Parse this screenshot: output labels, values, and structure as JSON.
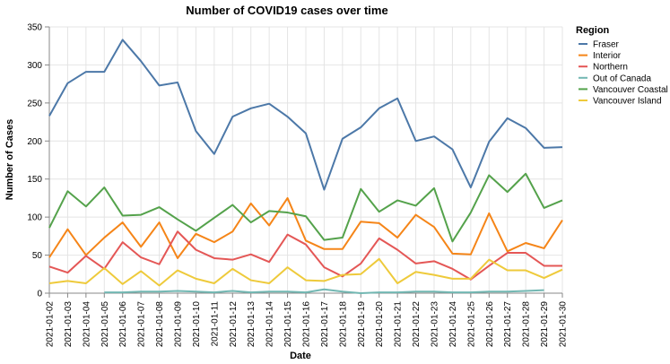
{
  "chart_data": {
    "type": "line",
    "title": "Number of COVID19 cases over time",
    "xlabel": "Date",
    "ylabel": "Number of Cases",
    "ylim": [
      0,
      350
    ],
    "yticks": [
      0,
      50,
      100,
      150,
      200,
      250,
      300,
      350
    ],
    "grid": true,
    "legend_title": "Region",
    "legend_position": "right",
    "x": [
      "2021-01-02",
      "2021-01-03",
      "2021-01-04",
      "2021-01-05",
      "2021-01-06",
      "2021-01-07",
      "2021-01-08",
      "2021-01-09",
      "2021-01-10",
      "2021-01-11",
      "2021-01-12",
      "2021-01-13",
      "2021-01-14",
      "2021-01-15",
      "2021-01-16",
      "2021-01-17",
      "2021-01-18",
      "2021-01-19",
      "2021-01-20",
      "2021-01-21",
      "2021-01-22",
      "2021-01-23",
      "2021-01-24",
      "2021-01-25",
      "2021-01-26",
      "2021-01-27",
      "2021-01-28",
      "2021-01-29",
      "2021-01-30"
    ],
    "series": [
      {
        "name": "Fraser",
        "color": "#4c78a8",
        "values": [
          233,
          276,
          291,
          291,
          333,
          305,
          273,
          277,
          213,
          183,
          232,
          243,
          249,
          232,
          210,
          136,
          203,
          218,
          243,
          256,
          200,
          206,
          189,
          139,
          199,
          230,
          217,
          191,
          192
        ]
      },
      {
        "name": "Interior",
        "color": "#f58518",
        "values": [
          47,
          84,
          50,
          73,
          93,
          61,
          93,
          46,
          78,
          67,
          81,
          118,
          89,
          125,
          69,
          58,
          58,
          94,
          92,
          73,
          103,
          87,
          52,
          51,
          105,
          55,
          66,
          59,
          96
        ]
      },
      {
        "name": "Northern",
        "color": "#e45756",
        "values": [
          35,
          27,
          49,
          32,
          67,
          47,
          38,
          81,
          57,
          46,
          44,
          51,
          41,
          77,
          64,
          34,
          22,
          39,
          72,
          57,
          39,
          42,
          32,
          18,
          36,
          53,
          53,
          36,
          36
        ]
      },
      {
        "name": "Out of Canada",
        "color": "#72b7b2",
        "values": [
          null,
          null,
          null,
          1,
          1,
          2,
          2,
          3,
          2,
          1,
          3,
          1,
          2,
          2,
          1,
          5,
          2,
          0,
          1,
          1,
          2,
          2,
          1,
          1,
          2,
          2,
          3,
          4,
          null
        ]
      },
      {
        "name": "Vancouver Coastal",
        "color": "#54a24b",
        "values": [
          86,
          134,
          114,
          139,
          102,
          103,
          113,
          97,
          82,
          99,
          116,
          93,
          108,
          106,
          101,
          70,
          73,
          137,
          107,
          122,
          115,
          138,
          68,
          106,
          155,
          133,
          157,
          112,
          122
        ]
      },
      {
        "name": "Vancouver Island",
        "color": "#eeca3b",
        "values": [
          13,
          16,
          13,
          33,
          12,
          29,
          10,
          30,
          19,
          13,
          32,
          17,
          13,
          34,
          17,
          16,
          24,
          25,
          45,
          13,
          28,
          24,
          19,
          19,
          44,
          30,
          30,
          20,
          31
        ]
      }
    ]
  }
}
